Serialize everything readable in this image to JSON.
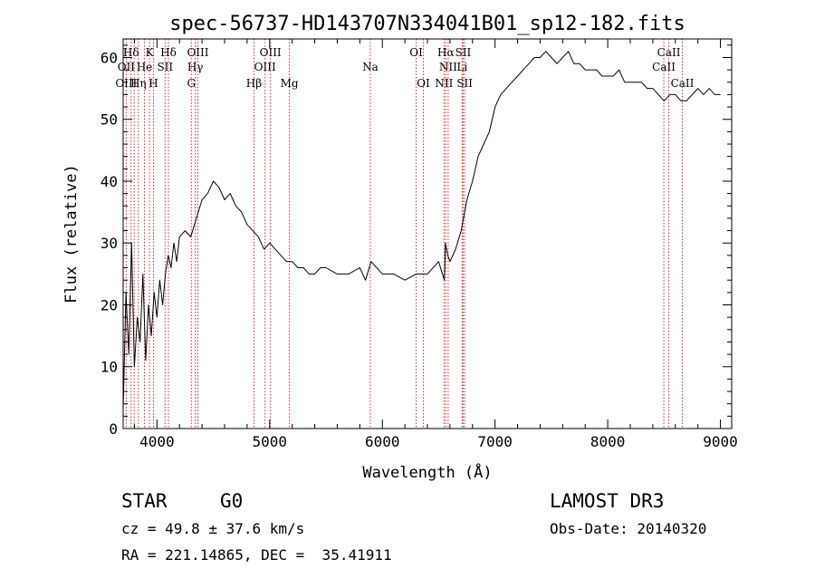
{
  "chart_data": {
    "type": "line",
    "title": "spec-56737-HD143707N334041B01_sp12-182.fits",
    "xlabel": "Wavelength (Å)",
    "ylabel": "Flux (relative)",
    "xlim": [
      3700,
      9100
    ],
    "ylim": [
      0,
      63
    ],
    "xticks": [
      4000,
      5000,
      6000,
      7000,
      8000,
      9000
    ],
    "yticks": [
      0,
      10,
      20,
      30,
      40,
      50,
      60
    ],
    "grid": false,
    "series": [
      {
        "x": [
          3700,
          3725,
          3750,
          3775,
          3800,
          3825,
          3850,
          3875,
          3900,
          3925,
          3950,
          3975,
          4000,
          4025,
          4050,
          4075,
          4100,
          4125,
          4150,
          4175,
          4200,
          4250,
          4300,
          4350,
          4400,
          4450,
          4500,
          4550,
          4600,
          4650,
          4700,
          4750,
          4800,
          4850,
          4900,
          4950,
          5000,
          5050,
          5100,
          5150,
          5200,
          5250,
          5300,
          5350,
          5400,
          5450,
          5500,
          5600,
          5700,
          5800,
          5850,
          5900,
          5950,
          6000,
          6100,
          6200,
          6300,
          6400,
          6500,
          6550,
          6560,
          6580,
          6600,
          6650,
          6700,
          6750,
          6800,
          6850,
          6900,
          6950,
          7000,
          7050,
          7100,
          7150,
          7200,
          7250,
          7300,
          7350,
          7400,
          7450,
          7500,
          7550,
          7600,
          7650,
          7700,
          7750,
          7800,
          7850,
          7900,
          7950,
          8000,
          8050,
          8100,
          8150,
          8200,
          8250,
          8300,
          8350,
          8400,
          8450,
          8500,
          8550,
          8600,
          8650,
          8700,
          8750,
          8800,
          8850,
          8900,
          8950,
          9000
        ],
        "y": [
          3,
          22,
          12,
          30,
          10,
          18,
          14,
          25,
          11,
          20,
          15,
          22,
          18,
          24,
          20,
          25,
          28,
          26,
          30,
          27,
          31,
          32,
          31,
          34,
          37,
          38,
          40,
          39,
          37,
          38,
          36,
          35,
          33,
          32,
          31,
          29,
          30,
          29,
          28,
          27,
          27,
          26,
          26,
          25,
          25,
          26,
          26,
          25,
          25,
          26,
          24,
          27,
          26,
          25,
          25,
          24,
          25,
          25,
          27,
          24,
          30,
          28,
          27,
          29,
          32,
          37,
          40,
          44,
          46,
          48,
          52,
          54,
          55,
          56,
          57,
          58,
          59,
          60,
          60,
          61,
          60,
          59,
          60,
          61,
          59,
          59,
          58,
          58,
          58,
          57,
          57,
          57,
          58,
          56,
          56,
          56,
          56,
          55,
          55,
          54,
          53,
          54,
          54,
          53,
          53,
          54,
          55,
          54,
          55,
          54,
          54
        ]
      }
    ],
    "line_annotations": [
      {
        "label": "Hδ",
        "row": 1,
        "x": 3770
      },
      {
        "label": "K",
        "row": 1,
        "x": 3934
      },
      {
        "label": "Hδ",
        "row": 1,
        "x": 4102
      },
      {
        "label": "OIII",
        "row": 1,
        "x": 4363
      },
      {
        "label": "OIII",
        "row": 1,
        "x": 5007
      },
      {
        "label": "OI",
        "row": 1,
        "x": 6300
      },
      {
        "label": "Hα",
        "row": 1,
        "x": 6563
      },
      {
        "label": "SII",
        "row": 1,
        "x": 6717
      },
      {
        "label": "CaII",
        "row": 1,
        "x": 8542
      },
      {
        "label": "OII",
        "row": 2,
        "x": 3727
      },
      {
        "label": "He",
        "row": 2,
        "x": 3889
      },
      {
        "label": "SII",
        "row": 2,
        "x": 4072
      },
      {
        "label": "Hγ",
        "row": 2,
        "x": 4340
      },
      {
        "label": "OIII",
        "row": 2,
        "x": 4959
      },
      {
        "label": "Na",
        "row": 2,
        "x": 5893
      },
      {
        "label": "NII",
        "row": 2,
        "x": 6584
      },
      {
        "label": "Li",
        "row": 2,
        "x": 6708
      },
      {
        "label": "CaII",
        "row": 2,
        "x": 8498
      },
      {
        "label": "OIII",
        "row": 3,
        "x": 3727
      },
      {
        "label": "Hη",
        "row": 3,
        "x": 3835
      },
      {
        "label": "H",
        "row": 3,
        "x": 3969
      },
      {
        "label": "G",
        "row": 3,
        "x": 4305
      },
      {
        "label": "Hβ",
        "row": 3,
        "x": 4861
      },
      {
        "label": "Mg",
        "row": 3,
        "x": 5175
      },
      {
        "label": "OI",
        "row": 3,
        "x": 6364
      },
      {
        "label": "NII",
        "row": 3,
        "x": 6548
      },
      {
        "label": "SII",
        "row": 3,
        "x": 6731
      },
      {
        "label": "CaII",
        "row": 3,
        "x": 8662
      }
    ],
    "marker_lines_x": [
      3727,
      3770,
      3798,
      3835,
      3889,
      3934,
      3969,
      4072,
      4102,
      4305,
      4340,
      4363,
      4861,
      4959,
      5007,
      5175,
      5893,
      6300,
      6364,
      6548,
      6563,
      6584,
      6708,
      6717,
      6731,
      8498,
      8542,
      8662
    ]
  },
  "footer": {
    "class_label": "STAR",
    "subclass_label": "G0",
    "survey_label": "LAMOST DR3",
    "cz_text": "cz = 49.8 ± 37.6 km/s",
    "obs_date_text": "Obs-Date: 20140320",
    "coords_text": "RA = 221.14865, DEC =  35.41911"
  },
  "colors": {
    "spectrum": "#000000",
    "marker_lines": "#c83232",
    "axes": "#000000"
  }
}
